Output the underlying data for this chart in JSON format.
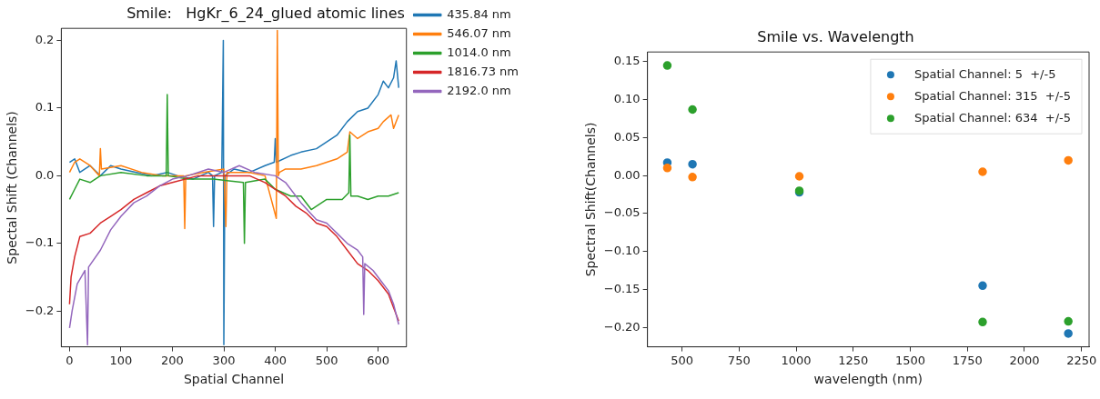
{
  "chart_data": [
    {
      "type": "line",
      "title": "Smile:   HgKr_6_24_glued atomic lines",
      "xlabel": "Spatial Channel",
      "ylabel": "Spectal Shift (Channels)",
      "xlim": [
        -16,
        655
      ],
      "ylim": [
        -0.253,
        0.218
      ],
      "xticks": [
        0,
        100,
        200,
        300,
        400,
        500,
        600
      ],
      "yticks": [
        {
          "value": -0.2,
          "label": "−0.2"
        },
        {
          "value": -0.1,
          "label": "−0.1"
        },
        {
          "value": 0,
          "label": "0.0"
        },
        0.1,
        0.2
      ],
      "legend": "right",
      "marker": "none",
      "series": [
        {
          "name": "435.84 nm",
          "color": "#1f77b4",
          "x": [
            0,
            10,
            20,
            40,
            60,
            80,
            100,
            130,
            160,
            190,
            210,
            240,
            270,
            278,
            280,
            282,
            296,
            299,
            300,
            302,
            320,
            350,
            380,
            398,
            400,
            402,
            430,
            450,
            480,
            500,
            520,
            540,
            560,
            580,
            600,
            610,
            620,
            630,
            635,
            640
          ],
          "values": [
            0.02,
            0.025,
            0.005,
            0.015,
            0.0,
            0.015,
            0.01,
            0.005,
            0.0,
            0.005,
            0.0,
            -0.005,
            0.005,
            0.0,
            -0.075,
            0.0,
            0.005,
            0.2,
            -0.25,
            0.0,
            0.01,
            0.005,
            0.015,
            0.02,
            0.055,
            0.02,
            0.03,
            0.035,
            0.04,
            0.05,
            0.06,
            0.08,
            0.095,
            0.1,
            0.12,
            0.14,
            0.13,
            0.145,
            0.17,
            0.13
          ]
        },
        {
          "name": "546.07 nm",
          "color": "#ff7f0e",
          "x": [
            0,
            10,
            20,
            40,
            58,
            60,
            62,
            100,
            140,
            180,
            222,
            224,
            226,
            260,
            300,
            304,
            306,
            308,
            350,
            380,
            402,
            404,
            406,
            408,
            420,
            450,
            480,
            500,
            520,
            540,
            545,
            560,
            580,
            600,
            610,
            625,
            630,
            640
          ],
          "values": [
            0.005,
            0.02,
            0.025,
            0.015,
            0.0,
            0.04,
            0.01,
            0.015,
            0.005,
            0.0,
            0.0,
            -0.078,
            0.0,
            0.005,
            0.01,
            -0.075,
            0.005,
            0.005,
            0.005,
            0.0,
            -0.063,
            0.215,
            0.0,
            0.005,
            0.01,
            0.01,
            0.015,
            0.02,
            0.025,
            0.035,
            0.065,
            0.055,
            0.065,
            0.07,
            0.08,
            0.09,
            0.07,
            0.09
          ]
        },
        {
          "name": "1014.0 nm",
          "color": "#2ca02c",
          "x": [
            0,
            10,
            20,
            40,
            60,
            100,
            150,
            188,
            190,
            192,
            230,
            280,
            338,
            340,
            342,
            380,
            400,
            430,
            450,
            470,
            500,
            530,
            543,
            545,
            547,
            560,
            580,
            600,
            620,
            640
          ],
          "values": [
            -0.035,
            -0.02,
            -0.005,
            -0.01,
            0.0,
            0.005,
            0.0,
            0.0,
            0.12,
            0.0,
            -0.005,
            -0.005,
            -0.01,
            -0.1,
            -0.01,
            -0.005,
            -0.02,
            -0.03,
            -0.03,
            -0.05,
            -0.035,
            -0.035,
            -0.025,
            0.06,
            -0.03,
            -0.03,
            -0.035,
            -0.03,
            -0.03,
            -0.025
          ]
        },
        {
          "name": "1816.73 nm",
          "color": "#d62728",
          "x": [
            0,
            3,
            10,
            20,
            40,
            60,
            80,
            100,
            125,
            150,
            175,
            200,
            250,
            300,
            350,
            380,
            400,
            420,
            440,
            460,
            480,
            500,
            520,
            540,
            560,
            580,
            600,
            620,
            630,
            640
          ],
          "values": [
            -0.19,
            -0.15,
            -0.12,
            -0.09,
            -0.085,
            -0.07,
            -0.06,
            -0.05,
            -0.035,
            -0.025,
            -0.015,
            -0.01,
            0.0,
            0.0,
            0.0,
            -0.01,
            -0.02,
            -0.03,
            -0.045,
            -0.055,
            -0.07,
            -0.075,
            -0.09,
            -0.11,
            -0.13,
            -0.14,
            -0.155,
            -0.175,
            -0.195,
            -0.215
          ]
        },
        {
          "name": "2192.0 nm",
          "color": "#9467bd",
          "x": [
            0,
            5,
            15,
            30,
            35,
            37,
            60,
            80,
            100,
            125,
            150,
            175,
            200,
            230,
            270,
            300,
            330,
            360,
            400,
            420,
            450,
            480,
            500,
            520,
            540,
            560,
            570,
            572,
            574,
            590,
            600,
            620,
            630,
            640
          ],
          "values": [
            -0.225,
            -0.2,
            -0.16,
            -0.14,
            -0.25,
            -0.135,
            -0.11,
            -0.08,
            -0.06,
            -0.04,
            -0.03,
            -0.015,
            -0.005,
            0.0,
            0.01,
            0.005,
            0.015,
            0.005,
            0.0,
            -0.01,
            -0.04,
            -0.065,
            -0.07,
            -0.085,
            -0.1,
            -0.11,
            -0.12,
            -0.205,
            -0.13,
            -0.14,
            -0.15,
            -0.17,
            -0.19,
            -0.22
          ]
        }
      ]
    },
    {
      "type": "scatter",
      "title": "Smile vs. Wavelength",
      "xlabel": "wavelength (nm)",
      "ylabel": "Spectral Shift(Channels)",
      "xlim": [
        349,
        2283
      ],
      "ylim": [
        -0.2256,
        0.1628
      ],
      "xticks": [
        500,
        750,
        1000,
        1250,
        1500,
        1750,
        2000,
        2250
      ],
      "yticks": [
        {
          "value": -0.2,
          "label": "−0.20"
        },
        {
          "value": -0.15,
          "label": "−0.15"
        },
        {
          "value": -0.1,
          "label": "−0.10"
        },
        {
          "value": -0.05,
          "label": "−0.05"
        },
        {
          "value": 0,
          "label": "0.00"
        },
        0.05,
        {
          "value": 0.1,
          "label": "0.10"
        },
        0.15
      ],
      "legend": "top right",
      "marker": "circle",
      "x": [
        435.84,
        546.07,
        1014.0,
        1816.73,
        2192.0
      ],
      "series": [
        {
          "name": "Spatial Channel: 5  +/-5",
          "color": "#1f77b4",
          "values": [
            0.017,
            0.015,
            -0.022,
            -0.145,
            -0.208
          ]
        },
        {
          "name": "Spatial Channel: 315  +/-5",
          "color": "#ff7f0e",
          "values": [
            0.01,
            -0.002,
            -0.001,
            0.005,
            0.02
          ]
        },
        {
          "name": "Spatial Channel: 634  +/-5",
          "color": "#2ca02c",
          "values": [
            0.145,
            0.087,
            -0.02,
            -0.193,
            -0.192
          ]
        }
      ]
    }
  ]
}
